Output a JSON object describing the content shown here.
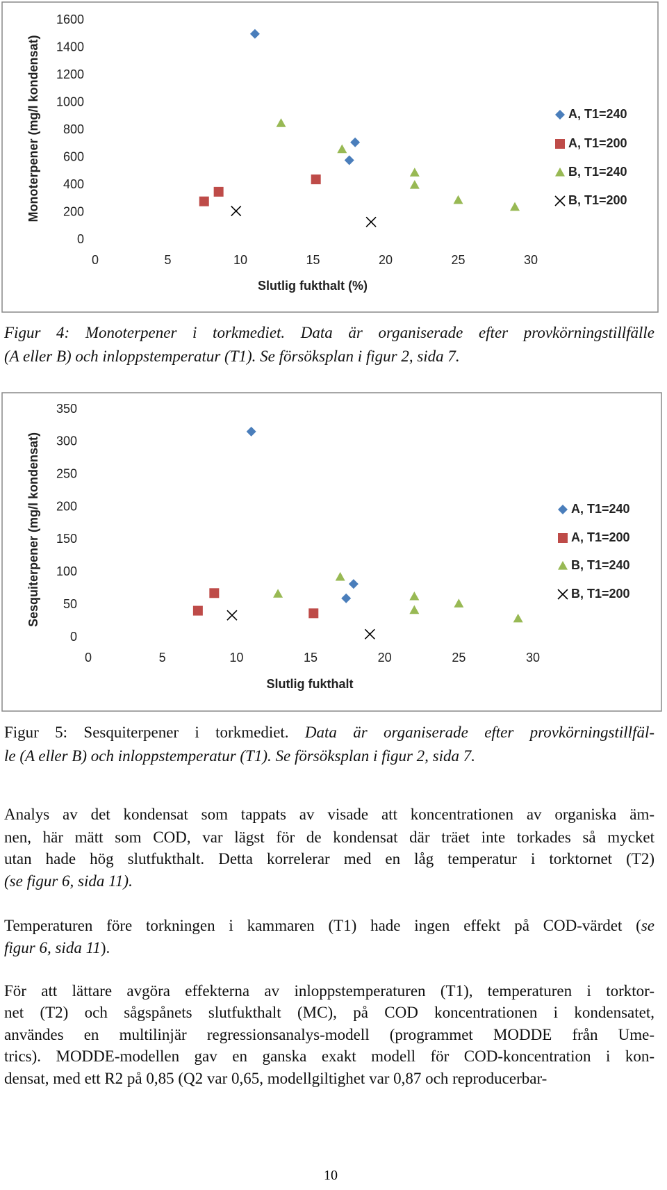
{
  "chart_data": [
    {
      "type": "scatter",
      "xlabel": "Slutlig fukthalt (%)",
      "ylabel": "Monoterpener (mg/l kondensat)",
      "xlim": [
        0,
        30
      ],
      "xticks": [
        0,
        5,
        10,
        15,
        20,
        25,
        30
      ],
      "ylim": [
        0,
        1600
      ],
      "yticks": [
        0,
        200,
        400,
        600,
        800,
        1000,
        1200,
        1400,
        1600
      ],
      "grid": false,
      "legend": "right",
      "series": [
        {
          "name": "A, T1=240",
          "color": "#4a7ebb",
          "marker": "diamond",
          "x": [
            11.0,
            17.5,
            17.9
          ],
          "values": [
            1500,
            580,
            710
          ]
        },
        {
          "name": "A, T1=200",
          "color": "#be4b48",
          "marker": "square",
          "x": [
            7.5,
            8.5,
            15.2
          ],
          "values": [
            280,
            350,
            440
          ]
        },
        {
          "name": "B, T1=240",
          "color": "#98b954",
          "marker": "triangle",
          "x": [
            12.8,
            17.0,
            22.0,
            22.0,
            25.0,
            28.9
          ],
          "values": [
            850,
            660,
            490,
            400,
            290,
            240
          ]
        },
        {
          "name": "B, T1=200",
          "color": "#000000",
          "marker": "x",
          "x": [
            9.7,
            19.0
          ],
          "values": [
            210,
            130
          ]
        }
      ]
    },
    {
      "type": "scatter",
      "xlabel": "Slutlig fukthalt",
      "ylabel": "Sesquiterpener (mg/l kondensat)",
      "xlim": [
        0,
        30
      ],
      "xticks": [
        0,
        5,
        10,
        15,
        20,
        25,
        30
      ],
      "ylim": [
        0,
        350
      ],
      "yticks": [
        0,
        50,
        100,
        150,
        200,
        250,
        300,
        350
      ],
      "grid": false,
      "legend": "right",
      "series": [
        {
          "name": "A, T1=240",
          "color": "#4a7ebb",
          "marker": "diamond",
          "x": [
            11.0,
            17.4,
            17.9
          ],
          "values": [
            316,
            60,
            82
          ]
        },
        {
          "name": "A, T1=200",
          "color": "#be4b48",
          "marker": "square",
          "x": [
            7.4,
            8.5,
            15.2
          ],
          "values": [
            41,
            68,
            37
          ]
        },
        {
          "name": "B, T1=240",
          "color": "#98b954",
          "marker": "triangle",
          "x": [
            12.8,
            17.0,
            22.0,
            22.0,
            25.0,
            29.0
          ],
          "values": [
            67,
            93,
            63,
            42,
            52,
            29
          ]
        },
        {
          "name": "B, T1=200",
          "color": "#000000",
          "marker": "x",
          "x": [
            9.7,
            19.0
          ],
          "values": [
            34,
            5
          ]
        }
      ]
    }
  ],
  "captions": [
    [
      [
        {
          "text": "Figur 4: Monoterpener i torkmediet. Data är organiserade efter provkörningstillfälle",
          "italic": true
        }
      ],
      [
        {
          "text": "(A eller B) och inloppstemperatur (T1). Se försöksplan i figur 2, sida 7.",
          "italic": true
        }
      ]
    ],
    [
      [
        {
          "text": "Figur 5: Sesquiterpener i torkmediet. ",
          "italic": false
        },
        {
          "text": "Data är organiserade efter provkörningstillfäl-",
          "italic": true
        }
      ],
      [
        {
          "text": "le (A eller B) och inloppstemperatur (T1). Se försöksplan i figur 2, sida 7.",
          "italic": true
        }
      ]
    ]
  ],
  "paragraphs": [
    [
      [
        {
          "text": "Analys av det kondensat som tappats av visade att koncentrationen av organiska äm-",
          "italic": false
        }
      ],
      [
        {
          "text": "nen, här mätt som COD, var lägst för de kondensat där träet inte torkades så mycket",
          "italic": false
        }
      ],
      [
        {
          "text": "utan hade hög slutfukthalt. Detta korrelerar med en låg temperatur i torktornet (T2)",
          "italic": false
        }
      ],
      [
        {
          "text": "(se figur 6, sida 11).",
          "italic": true
        }
      ]
    ],
    [
      [
        {
          "text": "Temperaturen före torkningen i kammaren (T1) hade ingen effekt på COD-värdet (",
          "italic": false
        },
        {
          "text": "se",
          "italic": true
        }
      ],
      [
        {
          "text": "figur 6, sida 11",
          "italic": true
        },
        {
          "text": ").",
          "italic": false
        }
      ]
    ],
    [
      [
        {
          "text": "För att lättare avgöra effekterna av inloppstemperaturen (T1), temperaturen i torktor-",
          "italic": false
        }
      ],
      [
        {
          "text": "net (T2) och sågspånets slutfukthalt (MC), på COD koncentrationen i kondensatet,",
          "italic": false
        }
      ],
      [
        {
          "text": "användes en multilinjär regressionsanalys-modell (programmet MODDE från Ume-",
          "italic": false
        }
      ],
      [
        {
          "text": "trics). MODDE-modellen gav en ganska exakt modell för COD-koncentration i kon-",
          "italic": false
        }
      ],
      [
        {
          "text": "densat, med ett R2 på 0,85 (Q2 var 0,65, modellgiltighet var 0,87 och reproducerbar-",
          "italic": false
        }
      ]
    ]
  ],
  "page_number": "10"
}
